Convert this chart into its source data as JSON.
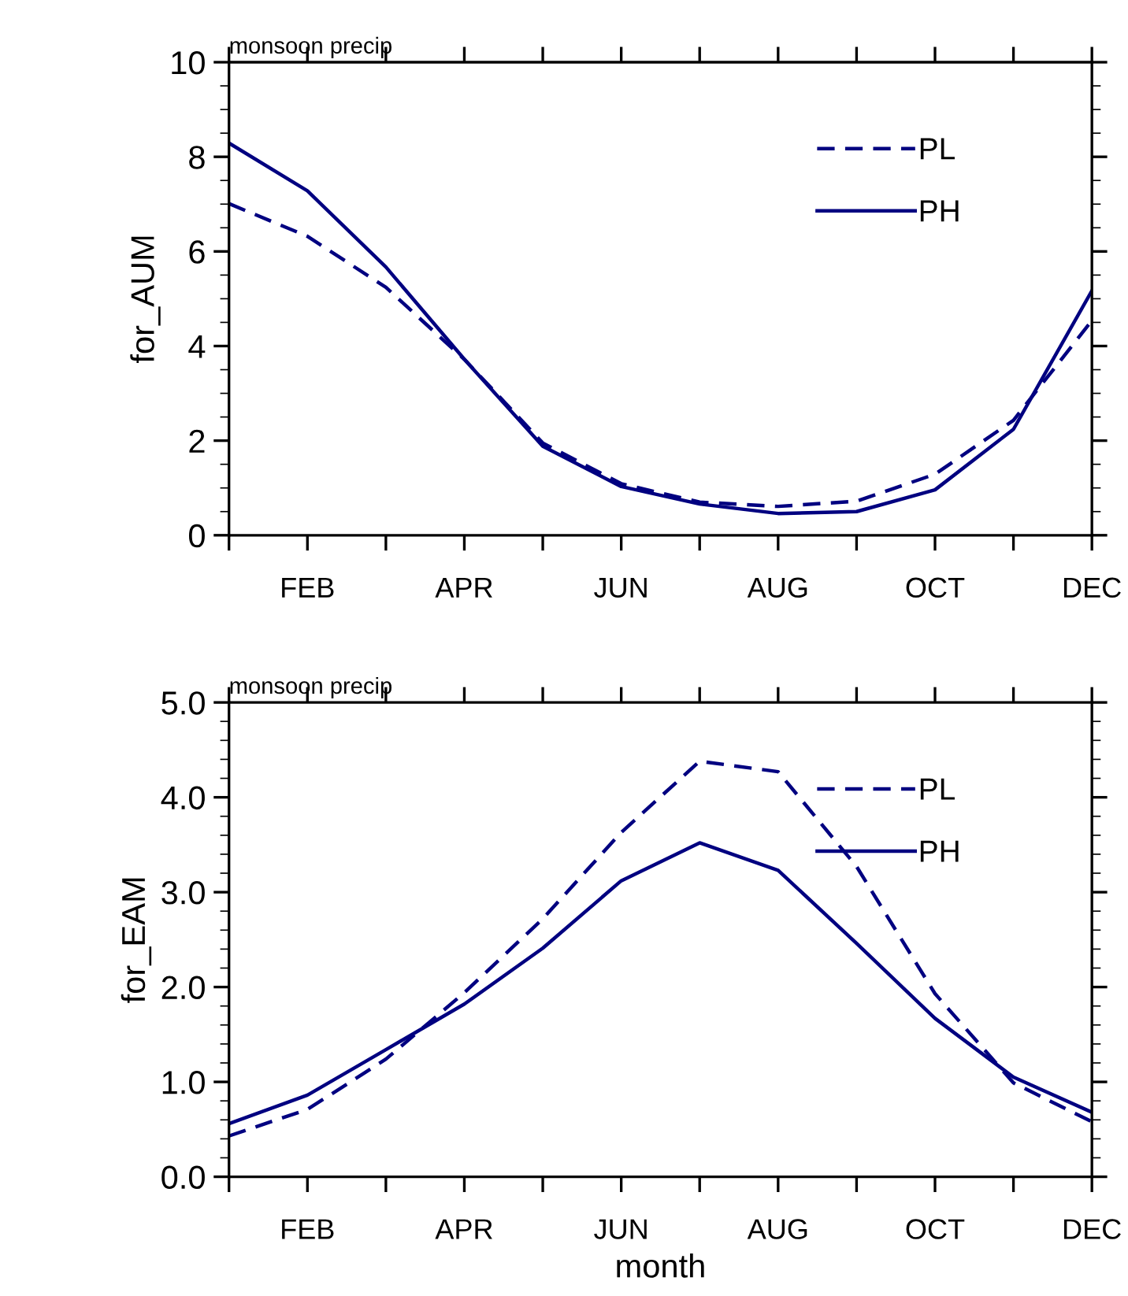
{
  "chart_data": [
    {
      "type": "line",
      "title": "monsoon precip",
      "ylabel": "for_AUM",
      "categories": [
        null,
        "FEB",
        null,
        "APR",
        null,
        "JUN",
        null,
        "AUG",
        null,
        "OCT",
        null,
        "DEC"
      ],
      "ylim": [
        0,
        10
      ],
      "yticks": [
        0,
        2,
        4,
        6,
        8,
        10
      ],
      "legend": "top right",
      "grid": false,
      "series": [
        {
          "name": "PL",
          "color": "#000080",
          "line_style": "dashed",
          "values": [
            7.01,
            6.32,
            5.24,
            3.72,
            1.95,
            1.09,
            0.7,
            0.61,
            0.72,
            1.29,
            2.43,
            4.54
          ]
        },
        {
          "name": "PH",
          "color": "#000080",
          "line_style": "solid",
          "values": [
            8.29,
            7.28,
            5.67,
            3.72,
            1.88,
            1.03,
            0.66,
            0.46,
            0.5,
            0.96,
            2.24,
            5.17
          ]
        }
      ]
    },
    {
      "type": "line",
      "title": "monsoon precip",
      "ylabel": "for_EAM",
      "xlabel": "month",
      "categories": [
        null,
        "FEB",
        null,
        "APR",
        null,
        "JUN",
        null,
        "AUG",
        null,
        "OCT",
        null,
        "DEC"
      ],
      "ylim": [
        0,
        5
      ],
      "yticks": [
        {
          "value": 0,
          "label": "0.0"
        },
        {
          "value": 1,
          "label": "1.0"
        },
        {
          "value": 2,
          "label": "2.0"
        },
        {
          "value": 3,
          "label": "3.0"
        },
        {
          "value": 4,
          "label": "4.0"
        },
        {
          "value": 5,
          "label": "5.0"
        }
      ],
      "legend": "top right",
      "grid": false,
      "series": [
        {
          "name": "PL",
          "color": "#000080",
          "line_style": "dashed",
          "values": [
            0.43,
            0.71,
            1.24,
            1.94,
            2.72,
            3.63,
            4.38,
            4.27,
            3.27,
            1.93,
            0.99,
            0.58
          ]
        },
        {
          "name": "PH",
          "color": "#000080",
          "line_style": "solid",
          "values": [
            0.56,
            0.86,
            1.34,
            1.82,
            2.41,
            3.12,
            3.52,
            3.23,
            2.46,
            1.67,
            1.05,
            0.68
          ]
        }
      ]
    }
  ]
}
